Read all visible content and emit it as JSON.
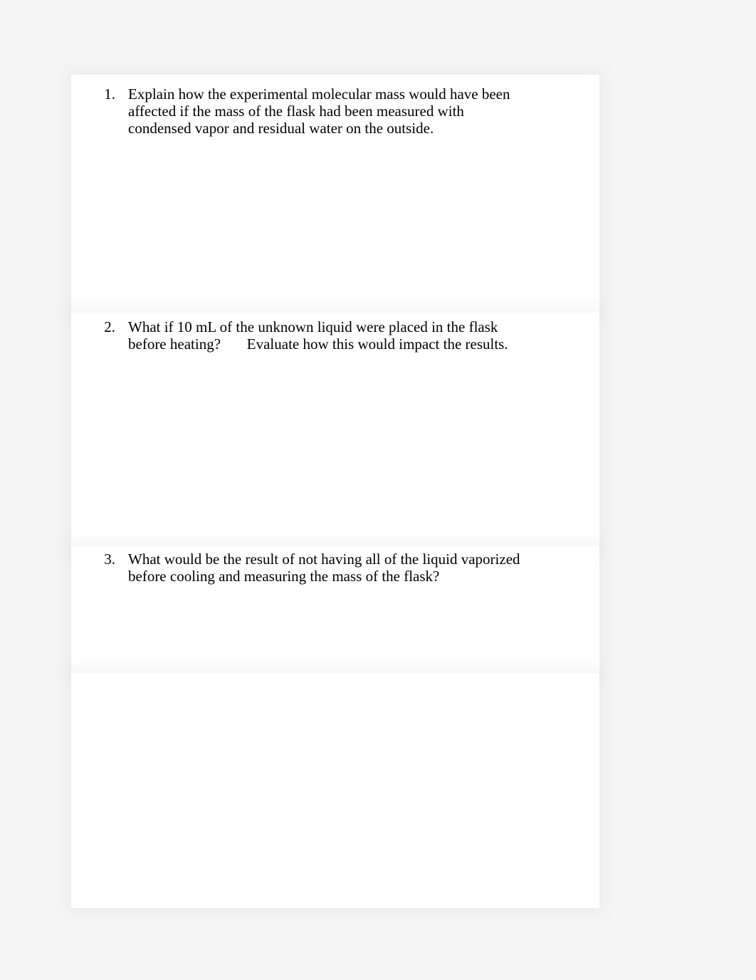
{
  "document": {
    "background_color": "#f5f5f5",
    "page_background": "#ffffff",
    "text_color": "#000000",
    "font_family": "Times New Roman",
    "font_size_pt": 16,
    "questions": [
      {
        "number": "1.",
        "text": "Explain how the experimental molecular mass would have been affected if the mass of the flask had been measured with condensed vapor and residual water on the outside."
      },
      {
        "number": "2.",
        "text_part1": "What if 10 mL of the unknown liquid were placed in the flask before heating?",
        "text_part2": "Evaluate how this would impact the results."
      },
      {
        "number": "3.",
        "text": "What would be the result of not having all of the liquid vaporized before cooling and measuring the mass of the flask?"
      }
    ]
  }
}
